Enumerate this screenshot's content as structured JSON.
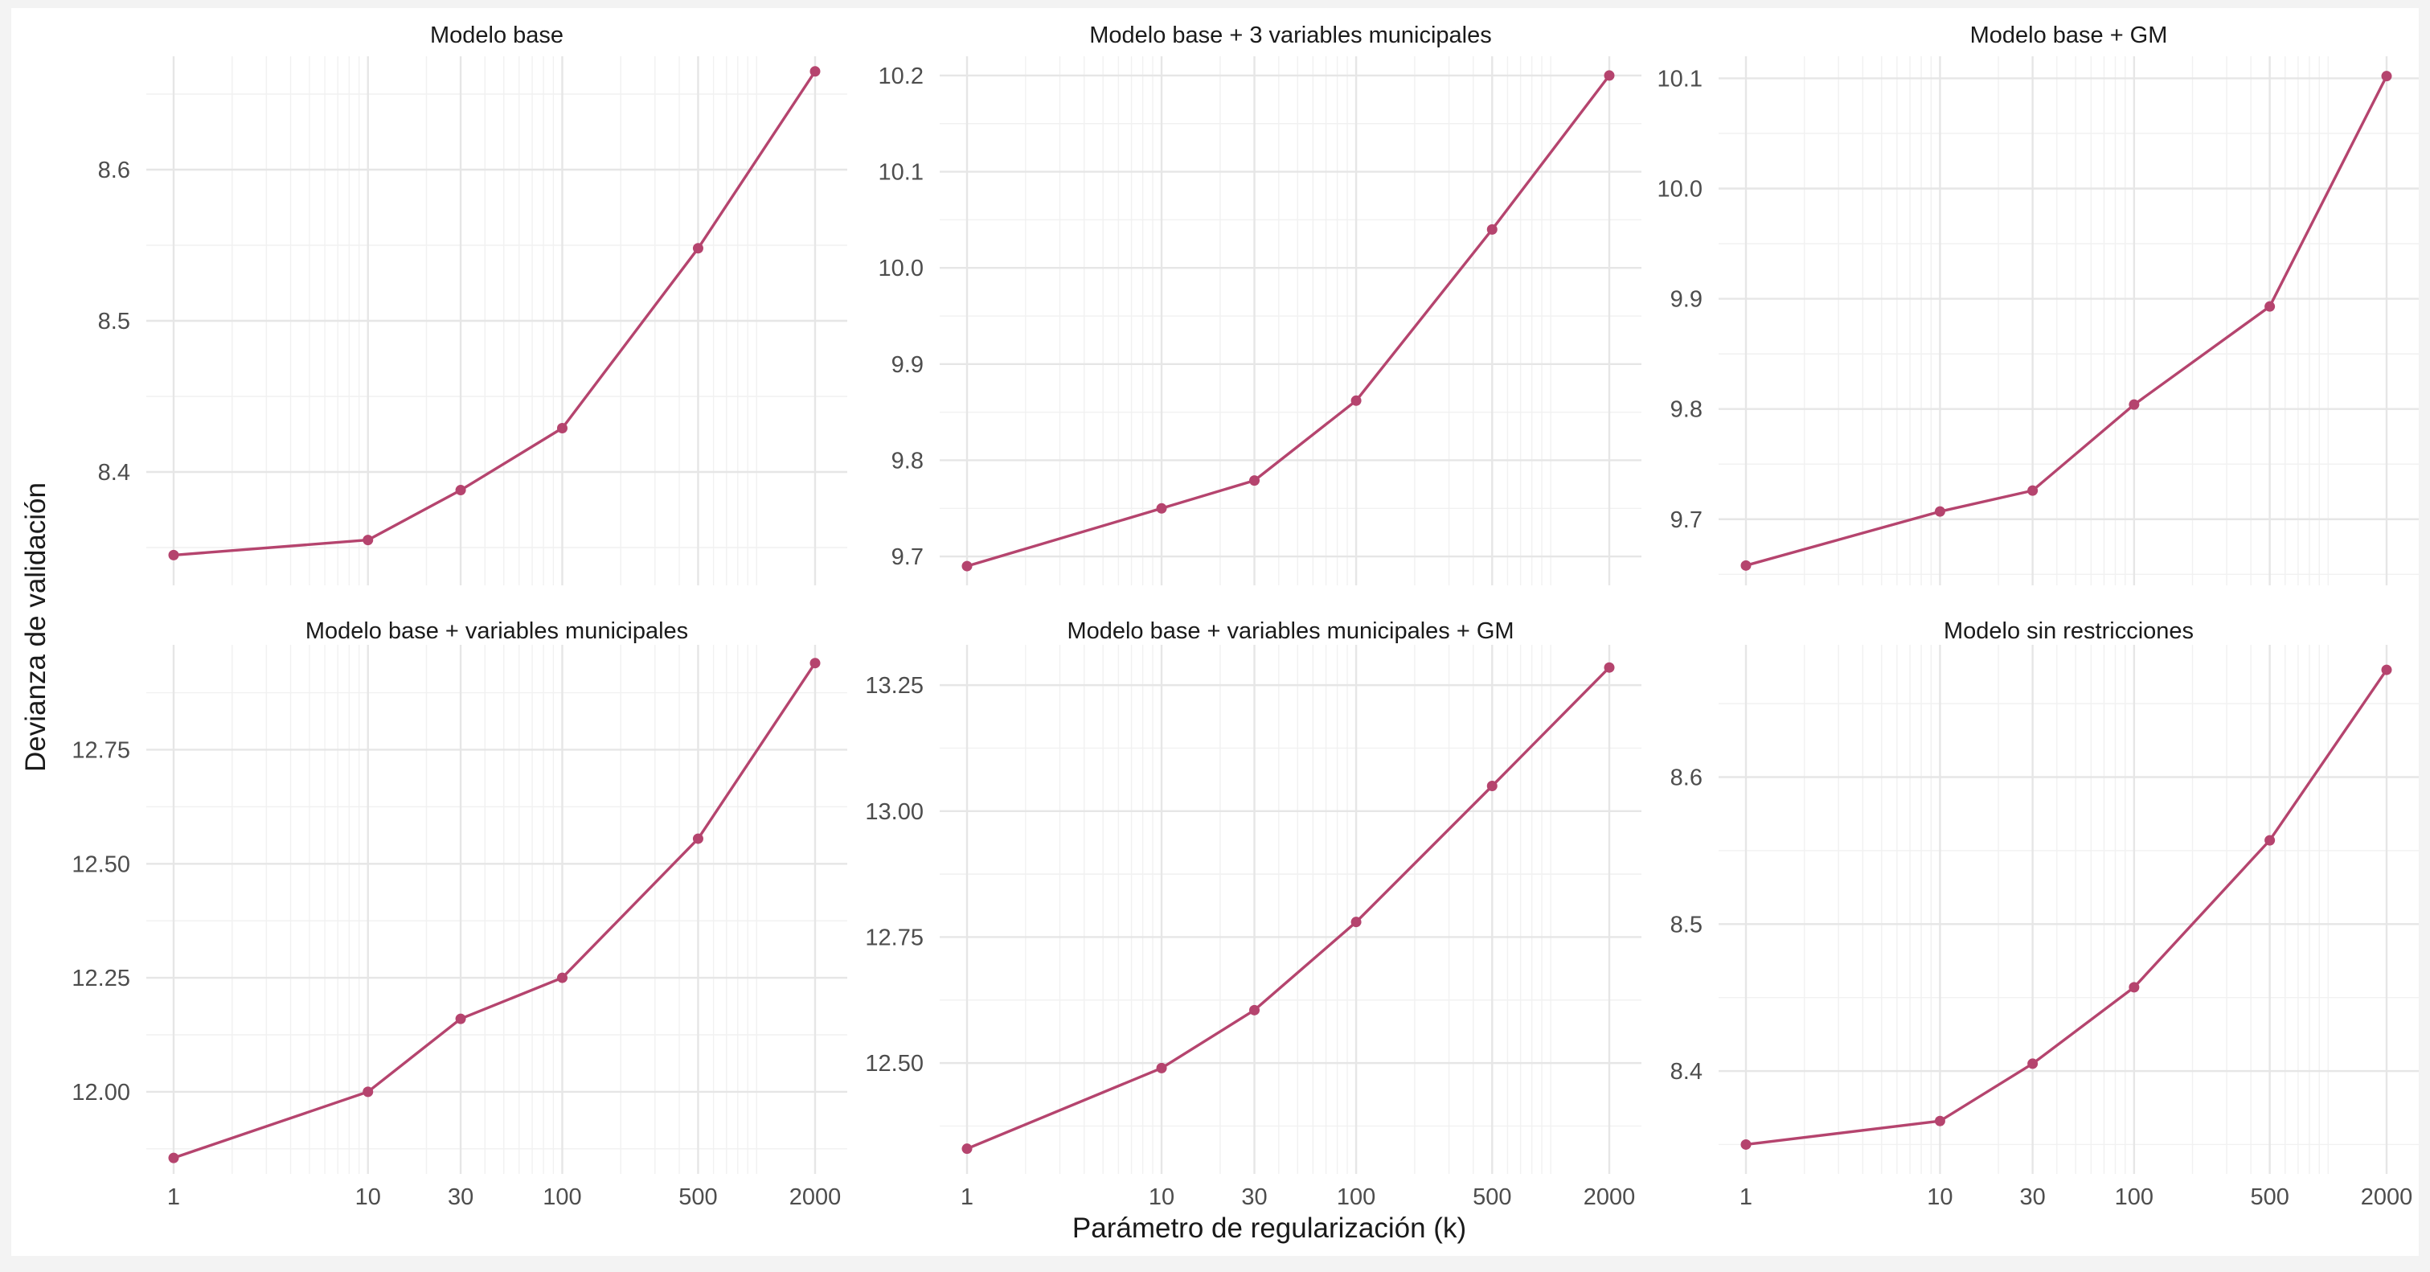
{
  "chart_data": {
    "type": "line",
    "xlabel": "Parámetro de regularización (k)",
    "ylabel": "Devianza de validación",
    "x_scale": "log",
    "x": [
      1,
      10,
      30,
      100,
      500,
      2000
    ],
    "x_ticks": [
      "1",
      "10",
      "30",
      "100",
      "500",
      "2000"
    ],
    "line_color": "#b5446e",
    "grid": true,
    "panels": [
      {
        "title": "Modelo base",
        "values": [
          8.345,
          8.355,
          8.388,
          8.429,
          8.548,
          8.665
        ],
        "ylim": [
          8.325,
          8.675
        ],
        "y_ticks": [
          8.4,
          8.5,
          8.6
        ],
        "y_labels": [
          "8.4",
          "8.5",
          "8.6"
        ],
        "y_minor": [
          8.35,
          8.45,
          8.55,
          8.65
        ]
      },
      {
        "title": "Modelo base + 3 variables municipales",
        "values": [
          9.69,
          9.75,
          9.779,
          9.862,
          10.04,
          10.2
        ],
        "ylim": [
          9.67,
          10.22
        ],
        "y_ticks": [
          9.7,
          9.8,
          9.9,
          10.0,
          10.1,
          10.2
        ],
        "y_labels": [
          "9.7",
          "9.8",
          "9.9",
          "10.0",
          "10.1",
          "10.2"
        ],
        "y_minor": [
          9.75,
          9.85,
          9.95,
          10.05,
          10.15
        ]
      },
      {
        "title": "Modelo base + GM",
        "values": [
          9.658,
          9.707,
          9.726,
          9.804,
          9.893,
          10.102
        ],
        "ylim": [
          9.64,
          10.12
        ],
        "y_ticks": [
          9.7,
          9.8,
          9.9,
          10.0,
          10.1
        ],
        "y_labels": [
          "9.7",
          "9.8",
          "9.9",
          "10.0",
          "10.1"
        ],
        "y_minor": [
          9.65,
          9.75,
          9.85,
          9.95,
          10.05
        ]
      },
      {
        "title": "Modelo base + variables municipales",
        "values": [
          11.855,
          12.0,
          12.16,
          12.25,
          12.555,
          12.94
        ],
        "ylim": [
          11.82,
          12.98
        ],
        "y_ticks": [
          12.0,
          12.25,
          12.5,
          12.75
        ],
        "y_labels": [
          "12.00",
          "12.25",
          "12.50",
          "12.75"
        ],
        "y_minor": [
          11.875,
          12.125,
          12.375,
          12.625,
          12.875
        ]
      },
      {
        "title": "Modelo base + variables municipales + GM",
        "values": [
          12.33,
          12.49,
          12.605,
          12.78,
          13.05,
          13.285
        ],
        "ylim": [
          12.28,
          13.33
        ],
        "y_ticks": [
          12.5,
          12.75,
          13.0,
          13.25
        ],
        "y_labels": [
          "12.50",
          "12.75",
          "13.00",
          "13.25"
        ],
        "y_minor": [
          12.375,
          12.625,
          12.875,
          13.125
        ]
      },
      {
        "title": "Modelo sin restricciones",
        "values": [
          8.35,
          8.366,
          8.405,
          8.457,
          8.557,
          8.673
        ],
        "ylim": [
          8.33,
          8.69
        ],
        "y_ticks": [
          8.4,
          8.5,
          8.6
        ],
        "y_labels": [
          "8.4",
          "8.5",
          "8.6"
        ],
        "y_minor": [
          8.35,
          8.45,
          8.55,
          8.65
        ]
      }
    ]
  }
}
